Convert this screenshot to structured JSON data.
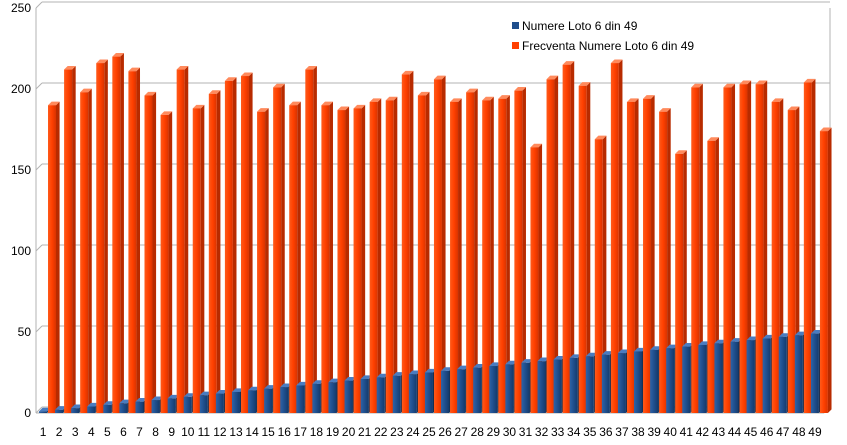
{
  "chart_data": {
    "type": "bar",
    "categories": [
      "1",
      "2",
      "3",
      "4",
      "5",
      "6",
      "7",
      "8",
      "9",
      "10",
      "11",
      "12",
      "13",
      "14",
      "15",
      "16",
      "17",
      "18",
      "19",
      "20",
      "21",
      "22",
      "23",
      "24",
      "25",
      "26",
      "27",
      "28",
      "29",
      "30",
      "31",
      "32",
      "33",
      "34",
      "35",
      "36",
      "37",
      "38",
      "39",
      "40",
      "41",
      "42",
      "43",
      "44",
      "45",
      "46",
      "47",
      "48",
      "49"
    ],
    "series": [
      {
        "name": "Numere Loto 6 din 49",
        "color": "#1f4e8c",
        "values": [
          1,
          2,
          3,
          4,
          5,
          6,
          7,
          8,
          9,
          10,
          11,
          12,
          13,
          14,
          15,
          16,
          17,
          18,
          19,
          20,
          21,
          22,
          23,
          24,
          25,
          26,
          27,
          28,
          29,
          30,
          31,
          32,
          33,
          34,
          35,
          36,
          37,
          38,
          39,
          40,
          41,
          42,
          43,
          44,
          45,
          46,
          47,
          48,
          49
        ]
      },
      {
        "name": "Frecventa Numere Loto 6 din 49",
        "color": "#ff4000",
        "values": [
          190,
          212,
          198,
          216,
          220,
          211,
          196,
          184,
          212,
          188,
          197,
          205,
          208,
          186,
          201,
          190,
          212,
          190,
          187,
          188,
          192,
          193,
          209,
          196,
          206,
          192,
          198,
          193,
          194,
          199,
          164,
          206,
          215,
          202,
          169,
          216,
          192,
          194,
          186,
          160,
          201,
          168,
          201,
          203,
          203,
          192,
          187,
          204,
          174
        ]
      }
    ],
    "yticks": [
      "0",
      "50",
      "100",
      "150",
      "200",
      "250"
    ],
    "ylim": [
      0,
      250
    ],
    "grid": true,
    "legend": "top-right"
  }
}
